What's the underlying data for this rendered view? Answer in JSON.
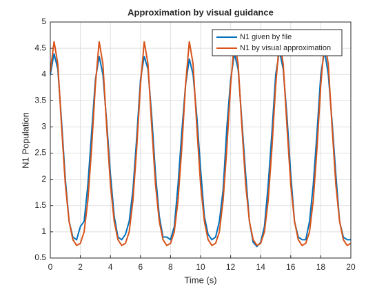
{
  "chart_data": {
    "type": "line",
    "title": "Approximation by visual guidance",
    "xlabel": "Time (s)",
    "ylabel": "N1 Population",
    "x": [
      0,
      0.25,
      0.5,
      0.75,
      1,
      1.25,
      1.5,
      1.75,
      2,
      2.25,
      2.5,
      2.75,
      3,
      3.25,
      3.5,
      3.75,
      4,
      4.25,
      4.5,
      4.75,
      5,
      5.25,
      5.5,
      5.75,
      6,
      6.25,
      6.5,
      6.75,
      7,
      7.25,
      7.5,
      7.75,
      8,
      8.25,
      8.5,
      8.75,
      9,
      9.25,
      9.5,
      9.75,
      10,
      10.25,
      10.5,
      10.75,
      11,
      11.25,
      11.5,
      11.75,
      12,
      12.25,
      12.5,
      12.75,
      13,
      13.25,
      13.5,
      13.75,
      14,
      14.25,
      14.5,
      14.75,
      15,
      15.25,
      15.5,
      15.75,
      16,
      16.25,
      16.5,
      16.75,
      17,
      17.25,
      17.5,
      17.75,
      18,
      18.25,
      18.5,
      18.75,
      19,
      19.25,
      19.5,
      19.75,
      20
    ],
    "series": [
      {
        "name": "N1 given by file",
        "color": "#0072BD",
        "values": [
          4.0,
          4.4,
          4.1,
          3.1,
          2.0,
          1.2,
          0.9,
          0.85,
          1.1,
          1.2,
          1.9,
          2.9,
          3.9,
          4.35,
          4.0,
          3.1,
          2.1,
          1.3,
          0.9,
          0.85,
          0.95,
          1.2,
          1.8,
          2.8,
          3.9,
          4.35,
          4.1,
          3.2,
          2.1,
          1.3,
          0.9,
          0.9,
          0.85,
          1.1,
          1.9,
          2.9,
          3.8,
          4.3,
          4.0,
          3.2,
          2.2,
          1.3,
          0.95,
          0.85,
          0.9,
          1.2,
          1.8,
          3.0,
          3.9,
          4.4,
          4.1,
          3.1,
          2.1,
          1.2,
          0.8,
          0.72,
          0.8,
          1.1,
          1.9,
          2.9,
          4.0,
          4.45,
          4.1,
          3.2,
          2.1,
          1.2,
          0.9,
          0.85,
          0.85,
          1.2,
          1.9,
          2.9,
          4.0,
          4.45,
          4.0,
          3.1,
          2.1,
          1.2,
          0.9,
          0.85,
          0.85
        ]
      },
      {
        "name": "N1 by visual approximation",
        "color": "#D95319",
        "values": [
          4.05,
          4.63,
          4.2,
          3.0,
          1.9,
          1.2,
          0.85,
          0.74,
          0.78,
          1.0,
          1.6,
          2.6,
          3.8,
          4.63,
          4.2,
          3.0,
          1.9,
          1.2,
          0.85,
          0.74,
          0.78,
          1.0,
          1.6,
          2.6,
          3.8,
          4.63,
          4.2,
          3.0,
          1.9,
          1.2,
          0.85,
          0.74,
          0.78,
          1.0,
          1.6,
          2.6,
          3.8,
          4.63,
          4.2,
          3.0,
          1.9,
          1.2,
          0.85,
          0.74,
          0.78,
          1.0,
          1.6,
          2.6,
          3.8,
          4.63,
          4.2,
          3.0,
          1.9,
          1.2,
          0.85,
          0.74,
          0.78,
          1.0,
          1.6,
          2.6,
          3.8,
          4.63,
          4.2,
          3.0,
          1.9,
          1.2,
          0.85,
          0.74,
          0.78,
          1.0,
          1.6,
          2.6,
          3.8,
          4.63,
          4.2,
          3.0,
          1.9,
          1.2,
          0.85,
          0.74,
          0.78
        ]
      }
    ],
    "xlim": [
      0,
      20
    ],
    "xticks": [
      0,
      2,
      4,
      6,
      8,
      10,
      12,
      14,
      16,
      18,
      20
    ],
    "ylim": [
      0.5,
      5
    ],
    "yticks": [
      0.5,
      1,
      1.5,
      2,
      2.5,
      3,
      3.5,
      4,
      4.5,
      5
    ],
    "grid": true,
    "legend": "northeast"
  }
}
